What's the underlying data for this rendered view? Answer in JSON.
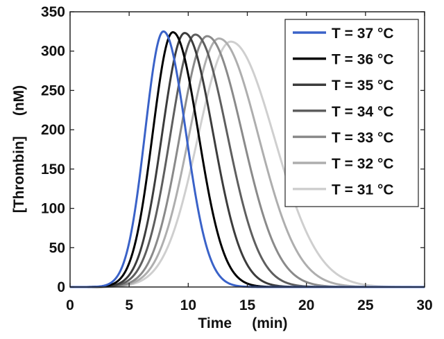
{
  "chart_data": {
    "type": "line",
    "xlabel": "Time     (min)",
    "ylabel": "[Thrombin]     (nM)",
    "xlim": [
      0,
      30
    ],
    "ylim": [
      0,
      350
    ],
    "x_ticks": [
      "0",
      "5",
      "10",
      "15",
      "20",
      "25",
      "30"
    ],
    "y_ticks": [
      "0",
      "50",
      "100",
      "150",
      "200",
      "250",
      "300",
      "350"
    ],
    "grid": false,
    "legend_position": "top-right",
    "series": [
      {
        "name": "T = 37 °C",
        "color": "#3a62c8",
        "peak_time": 7.9,
        "peak_value": 325,
        "rise_sigma": 1.55,
        "fall_sigma": 1.9,
        "onset": 1.5
      },
      {
        "name": "T = 36 °C",
        "color": "#000000",
        "peak_time": 8.7,
        "peak_value": 324,
        "rise_sigma": 1.7,
        "fall_sigma": 2.15,
        "onset": 1.5
      },
      {
        "name": "T = 35 °C",
        "color": "#3c3c3c",
        "peak_time": 9.7,
        "peak_value": 323,
        "rise_sigma": 1.9,
        "fall_sigma": 2.4,
        "onset": 1.6
      },
      {
        "name": "T = 34 °C",
        "color": "#5e5e5e",
        "peak_time": 10.6,
        "peak_value": 321,
        "rise_sigma": 2.1,
        "fall_sigma": 2.7,
        "onset": 1.7
      },
      {
        "name": "T = 33 °C",
        "color": "#8a8a8a",
        "peak_time": 11.6,
        "peak_value": 319,
        "rise_sigma": 2.3,
        "fall_sigma": 3.0,
        "onset": 1.8
      },
      {
        "name": "T = 32 °C",
        "color": "#aeaeae",
        "peak_time": 12.6,
        "peak_value": 316,
        "rise_sigma": 2.55,
        "fall_sigma": 3.35,
        "onset": 1.9
      },
      {
        "name": "T = 31 °C",
        "color": "#cfcfcf",
        "peak_time": 13.6,
        "peak_value": 312,
        "rise_sigma": 2.8,
        "fall_sigma": 3.7,
        "onset": 2.0
      }
    ]
  }
}
